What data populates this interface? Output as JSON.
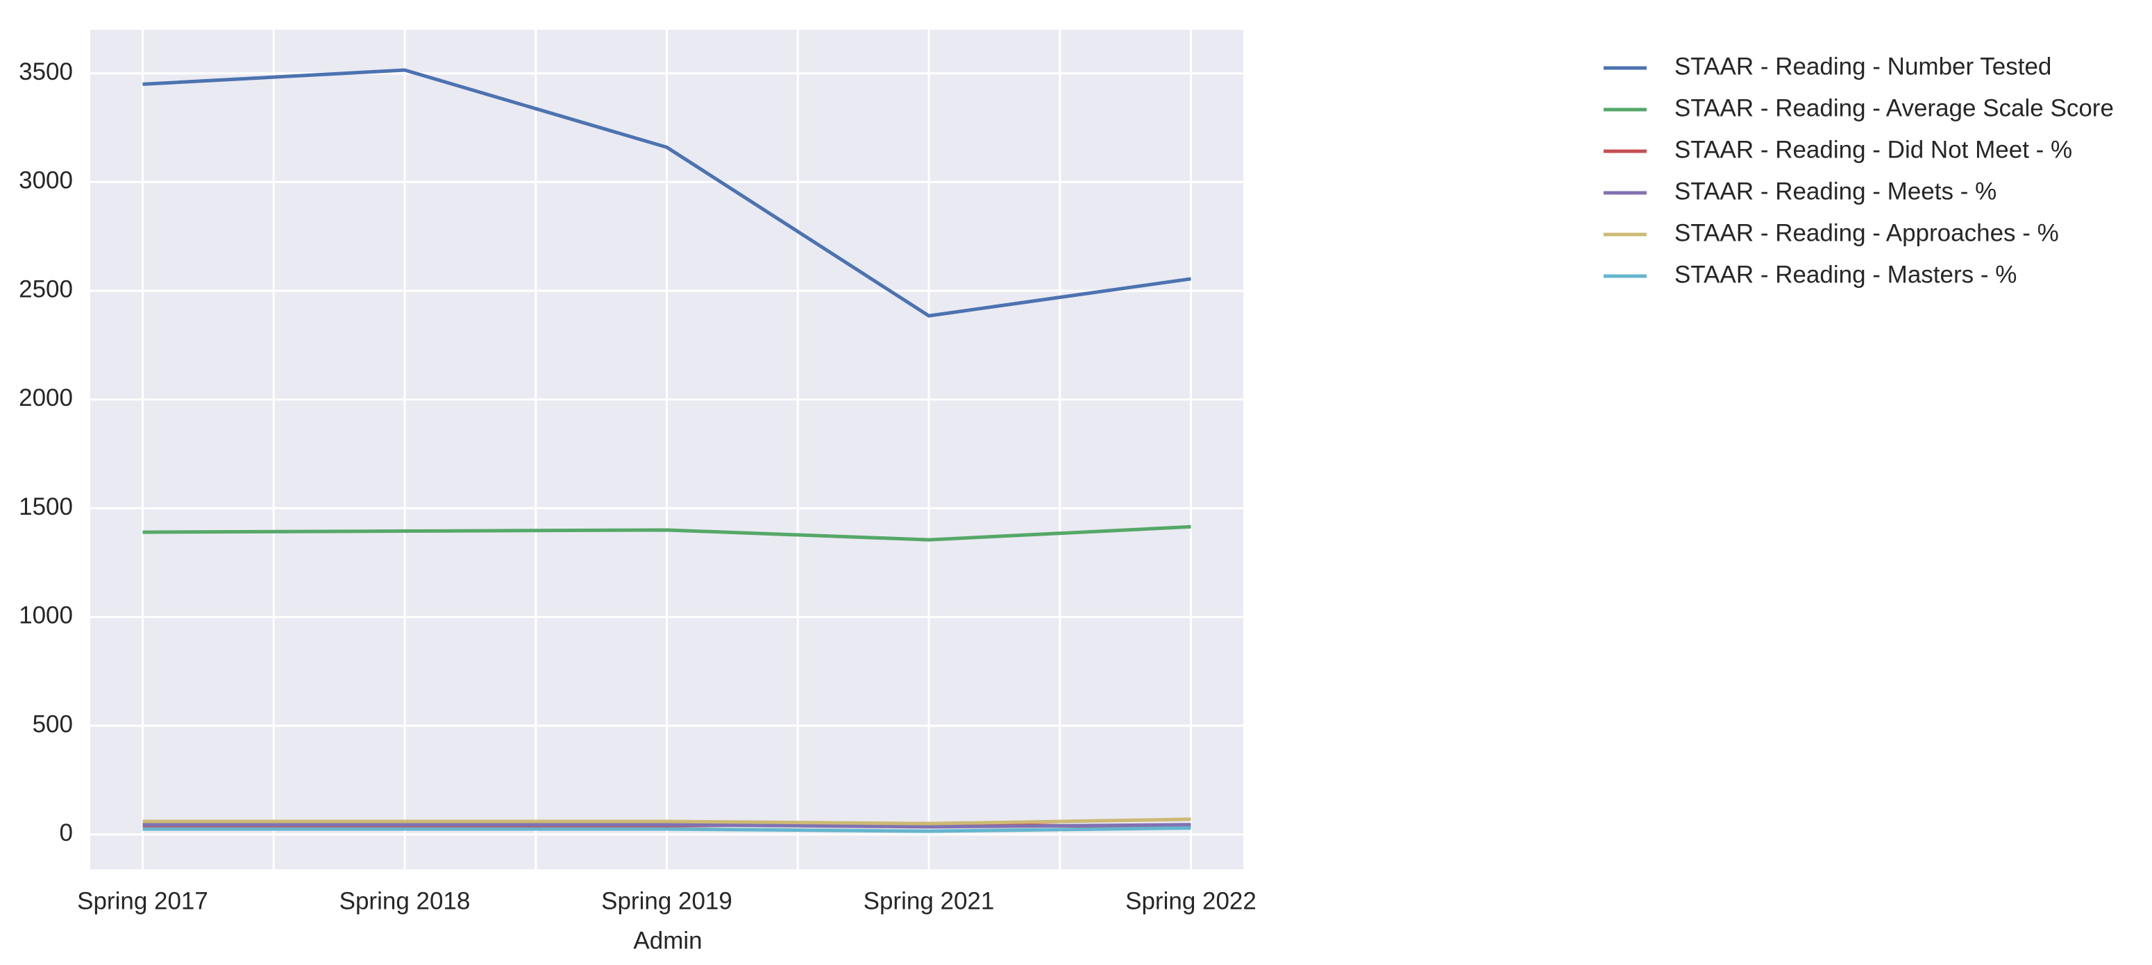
{
  "chart_data": {
    "type": "line",
    "x_label": "Admin",
    "categories": [
      "Spring 2017",
      "Spring 2018",
      "Spring 2019",
      "Spring 2021",
      "Spring 2022"
    ],
    "series": [
      {
        "name": "STAAR - Reading - Number Tested",
        "color": "#4c72b0",
        "values": [
          3450,
          3515,
          3160,
          2385,
          2555
        ]
      },
      {
        "name": "STAAR - Reading - Average Scale Score",
        "color": "#55a868",
        "values": [
          1390,
          1395,
          1400,
          1355,
          1415
        ]
      },
      {
        "name": "STAAR - Reading - Did Not Meet - %",
        "color": "#c44e52",
        "values": [
          40,
          40,
          40,
          50,
          30
        ]
      },
      {
        "name": "STAAR - Reading - Meets - %",
        "color": "#8172b2",
        "values": [
          45,
          45,
          45,
          35,
          45
        ]
      },
      {
        "name": "STAAR - Reading - Approaches - %",
        "color": "#ccb974",
        "values": [
          60,
          60,
          60,
          50,
          70
        ]
      },
      {
        "name": "STAAR - Reading - Masters - %",
        "color": "#64b5cd",
        "values": [
          25,
          25,
          25,
          15,
          30
        ]
      }
    ],
    "ylim": [
      -160,
      3700
    ],
    "yticks": [
      0,
      500,
      1000,
      1500,
      2000,
      2500,
      3000,
      3500
    ],
    "grid": true,
    "legend": "outside-right"
  }
}
